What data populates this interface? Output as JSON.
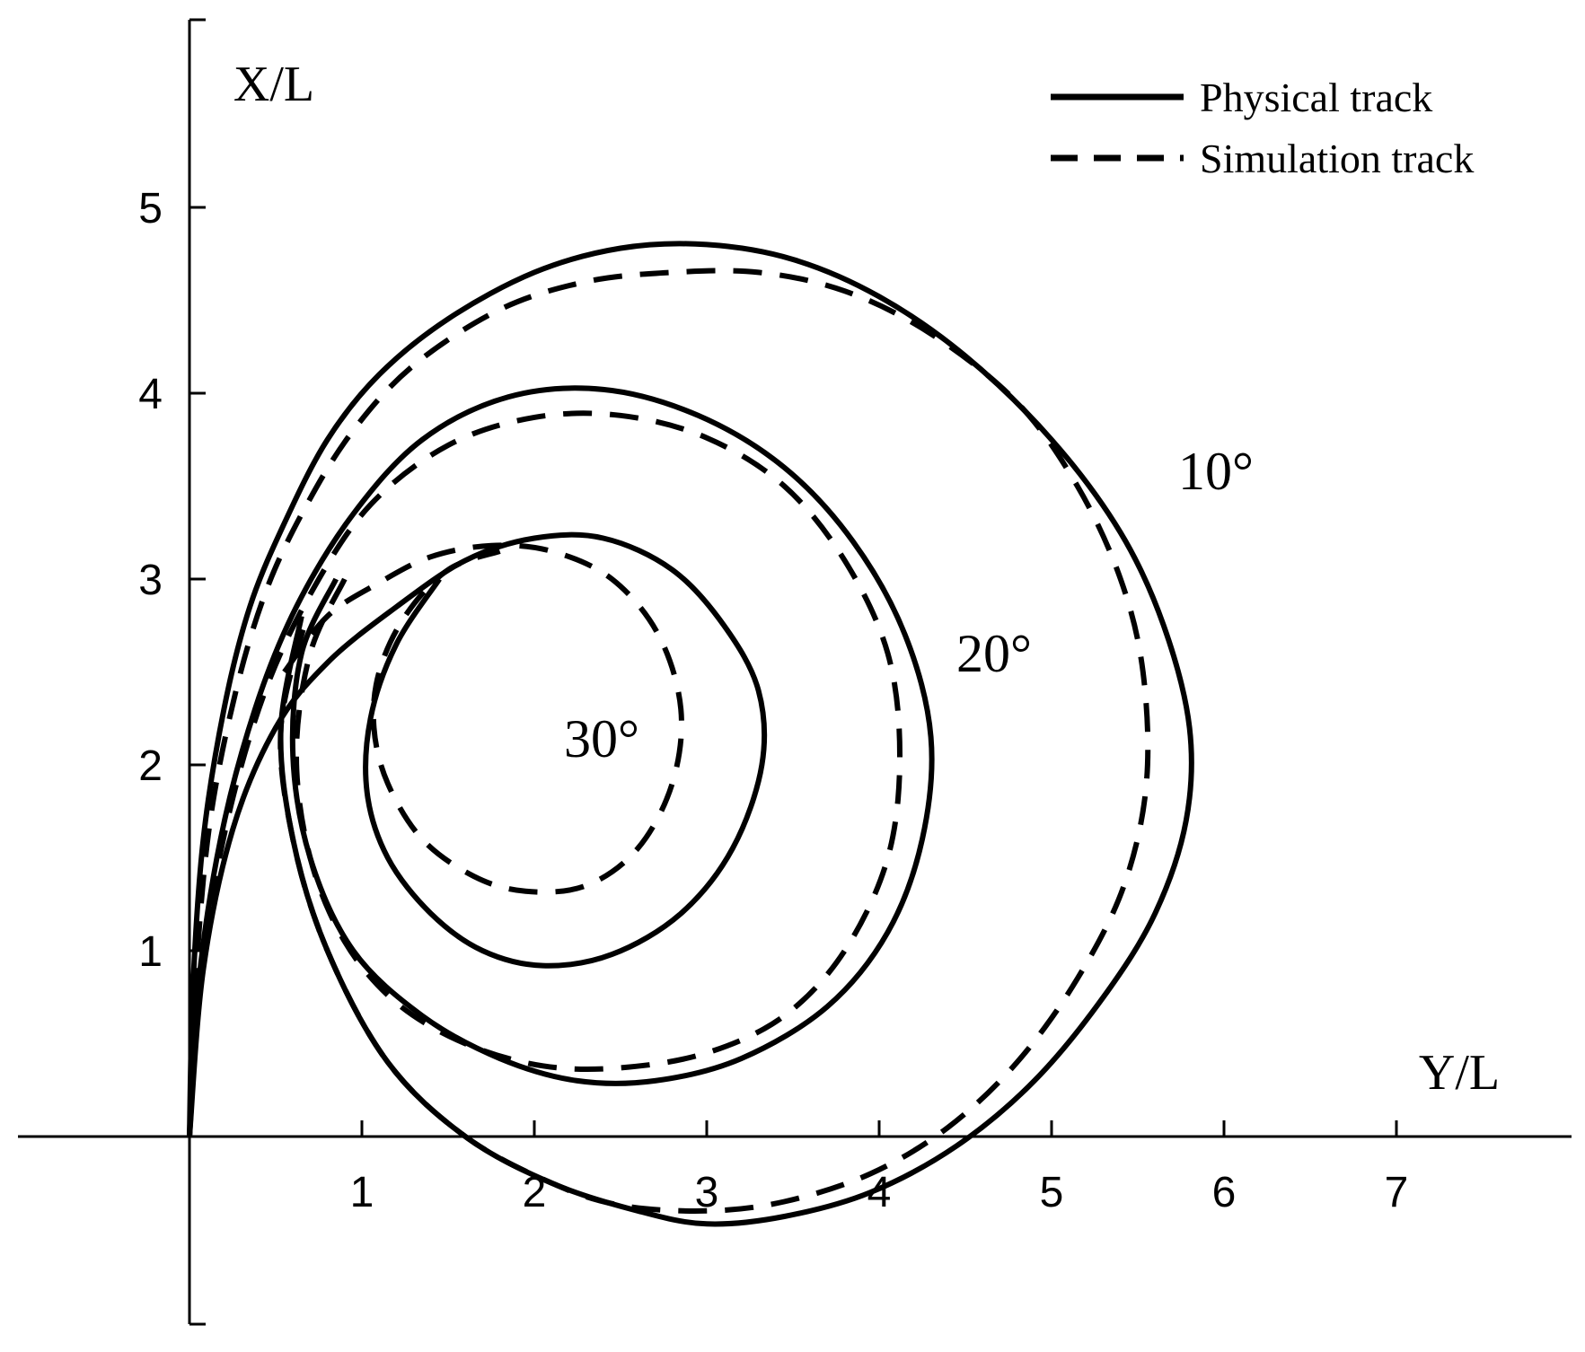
{
  "chart_data": {
    "type": "line",
    "title": "",
    "xlabel": "Y/L",
    "ylabel": "X/L",
    "xlim": [
      -1,
      8
    ],
    "ylim": [
      -1,
      6
    ],
    "x_ticks": [
      1,
      2,
      3,
      4,
      5,
      6,
      7
    ],
    "y_ticks": [
      1,
      2,
      3,
      4,
      5
    ],
    "grid": false,
    "legend": {
      "position": "top-right",
      "entries": [
        {
          "label": "Physical track",
          "style": "solid"
        },
        {
          "label": "Simulation track",
          "style": "dashed"
        }
      ]
    },
    "annotations": [
      {
        "text": "10°",
        "x": 6.0,
        "y": 3.45
      },
      {
        "text": "20°",
        "x": 4.7,
        "y": 2.5
      },
      {
        "text": "30°",
        "x": 2.5,
        "y": 2.15
      }
    ],
    "series": [
      {
        "group": "10°",
        "style": "solid",
        "x": [
          0,
          0.02,
          0.08,
          0.2,
          0.35,
          0.55,
          0.8,
          1.1,
          1.5,
          2.0,
          2.5,
          3.0,
          3.5,
          4.0,
          4.5,
          5.0,
          5.4,
          5.65,
          5.8,
          5.78,
          5.6,
          5.3,
          4.9,
          4.45,
          3.95,
          3.45,
          3.0,
          2.6,
          2.1,
          1.6,
          1.15,
          0.8,
          0.6,
          0.53,
          0.65
        ],
        "y": [
          0,
          0.8,
          1.6,
          2.3,
          2.85,
          3.3,
          3.75,
          4.1,
          4.4,
          4.65,
          4.78,
          4.8,
          4.72,
          4.52,
          4.2,
          3.75,
          3.25,
          2.75,
          2.2,
          1.7,
          1.2,
          0.75,
          0.3,
          -0.05,
          -0.3,
          -0.43,
          -0.47,
          -0.4,
          -0.25,
          0.0,
          0.4,
          1.0,
          1.6,
          2.2,
          2.8
        ]
      },
      {
        "group": "10°",
        "style": "dashed",
        "x": [
          0,
          0.04,
          0.12,
          0.27,
          0.45,
          0.68,
          0.95,
          1.3,
          1.8,
          2.3,
          2.8,
          3.3,
          3.8,
          4.3,
          4.8,
          5.15,
          5.4,
          5.53,
          5.55,
          5.42,
          5.15,
          4.8,
          4.4,
          3.95,
          3.45,
          3.0,
          2.5,
          2.1,
          1.6,
          1.15,
          0.8,
          0.6,
          0.53,
          0.68
        ],
        "y": [
          0,
          0.9,
          1.7,
          2.4,
          2.95,
          3.4,
          3.8,
          4.15,
          4.45,
          4.6,
          4.65,
          4.65,
          4.55,
          4.32,
          3.95,
          3.5,
          3.0,
          2.5,
          1.9,
          1.35,
          0.85,
          0.4,
          0.05,
          -0.2,
          -0.35,
          -0.4,
          -0.37,
          -0.25,
          0.0,
          0.4,
          1.0,
          1.6,
          2.2,
          2.8
        ]
      },
      {
        "group": "20°",
        "style": "solid",
        "x": [
          0,
          0.05,
          0.18,
          0.38,
          0.62,
          0.95,
          1.35,
          1.85,
          2.4,
          2.95,
          3.45,
          3.85,
          4.15,
          4.3,
          4.25,
          4.05,
          3.7,
          3.2,
          2.7,
          2.25,
          1.8,
          1.35,
          0.95,
          0.7,
          0.6,
          0.65,
          0.85
        ],
        "y": [
          0,
          0.8,
          1.6,
          2.3,
          2.85,
          3.35,
          3.75,
          3.98,
          4.02,
          3.88,
          3.6,
          3.2,
          2.7,
          2.15,
          1.6,
          1.1,
          0.7,
          0.42,
          0.3,
          0.3,
          0.42,
          0.65,
          1.0,
          1.5,
          2.05,
          2.6,
          3.0
        ]
      },
      {
        "group": "20°",
        "style": "dashed",
        "x": [
          0,
          0.07,
          0.22,
          0.44,
          0.72,
          1.05,
          1.5,
          2.0,
          2.5,
          3.0,
          3.45,
          3.8,
          4.05,
          4.12,
          4.05,
          3.8,
          3.45,
          3.0,
          2.5,
          2.05,
          1.6,
          1.2,
          0.9,
          0.7,
          0.62,
          0.7,
          0.9
        ],
        "y": [
          0,
          0.9,
          1.7,
          2.4,
          2.95,
          3.4,
          3.72,
          3.87,
          3.88,
          3.76,
          3.5,
          3.1,
          2.6,
          2.05,
          1.5,
          1.0,
          0.65,
          0.45,
          0.37,
          0.38,
          0.5,
          0.72,
          1.05,
          1.5,
          2.05,
          2.6,
          3.0
        ]
      },
      {
        "group": "30°",
        "style": "solid",
        "x": [
          0,
          0.08,
          0.25,
          0.5,
          0.8,
          1.2,
          1.6,
          2.0,
          2.4,
          2.8,
          3.1,
          3.3,
          3.32,
          3.15,
          2.85,
          2.45,
          2.05,
          1.7,
          1.4,
          1.15,
          1.03,
          1.05,
          1.2,
          1.45
        ],
        "y": [
          0,
          0.9,
          1.65,
          2.2,
          2.55,
          2.85,
          3.1,
          3.22,
          3.22,
          3.05,
          2.75,
          2.4,
          2.0,
          1.55,
          1.2,
          0.98,
          0.92,
          1.0,
          1.2,
          1.5,
          1.85,
          2.25,
          2.65,
          3.0
        ]
      },
      {
        "group": "30°",
        "style": "dashed",
        "x": [
          0.55,
          0.8,
          1.1,
          1.4,
          1.75,
          2.1,
          2.45,
          2.72,
          2.85,
          2.8,
          2.6,
          2.3,
          1.95,
          1.65,
          1.35,
          1.15,
          1.07,
          1.1,
          1.25,
          1.5,
          1.8
        ],
        "y": [
          2.5,
          2.8,
          2.98,
          3.12,
          3.18,
          3.15,
          3.0,
          2.7,
          2.3,
          1.9,
          1.55,
          1.35,
          1.32,
          1.4,
          1.6,
          1.9,
          2.2,
          2.5,
          2.8,
          3.05,
          3.15
        ]
      }
    ]
  }
}
